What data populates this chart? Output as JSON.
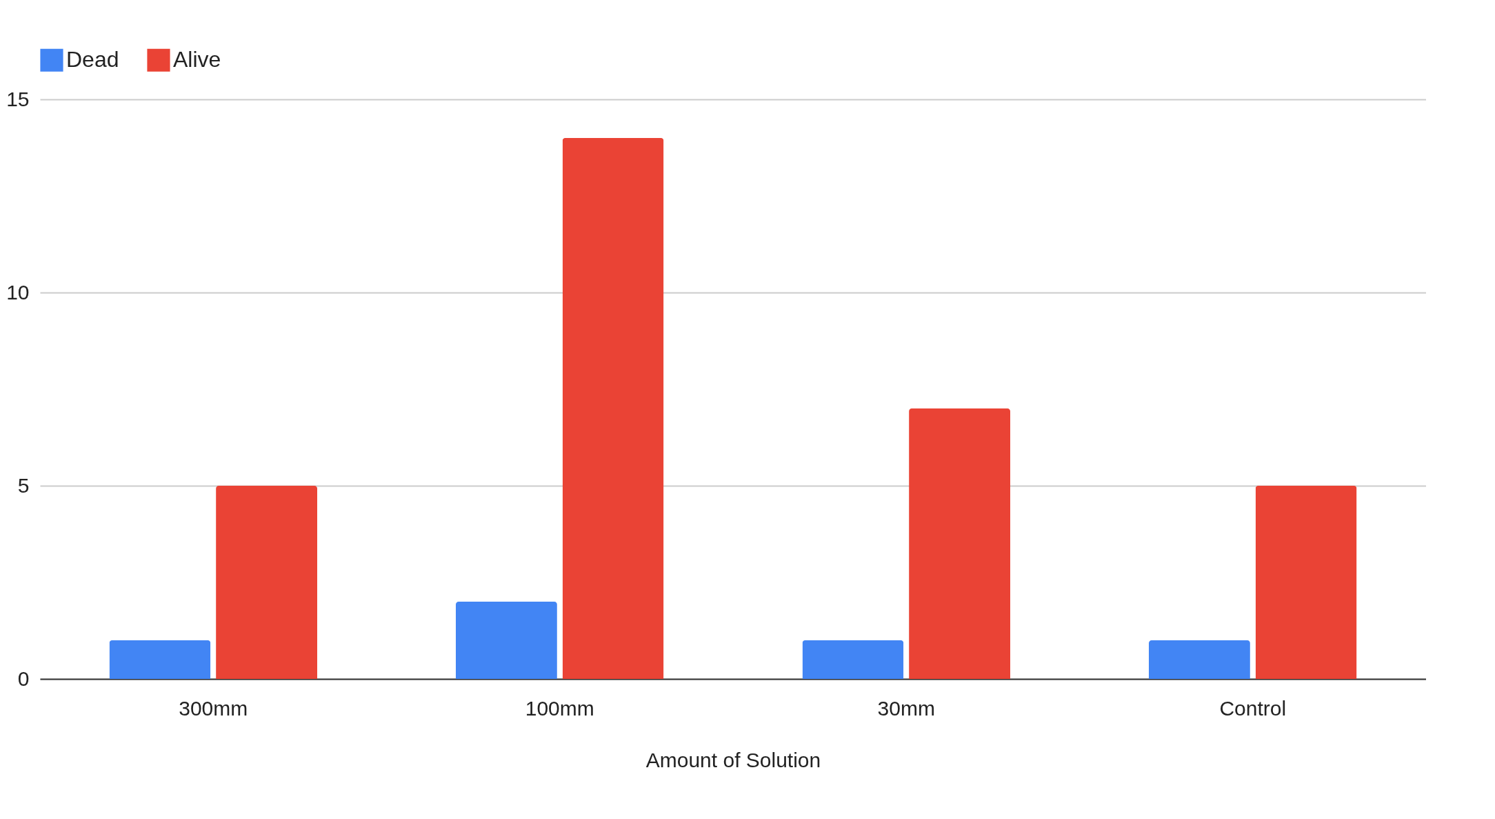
{
  "chart_data": {
    "type": "bar",
    "xlabel": "Amount of Solution",
    "categories": [
      "300mm",
      "100mm",
      "30mm",
      "Control"
    ],
    "series": [
      {
        "name": "Dead",
        "color": "#4285f4",
        "values": [
          1,
          2,
          1,
          1
        ]
      },
      {
        "name": "Alive",
        "color": "#ea4335",
        "values": [
          5,
          14,
          7,
          5
        ]
      }
    ],
    "ylim": [
      0,
      15
    ],
    "yticks": [
      0,
      5,
      10,
      15
    ],
    "grid": "y",
    "legend": "top"
  }
}
